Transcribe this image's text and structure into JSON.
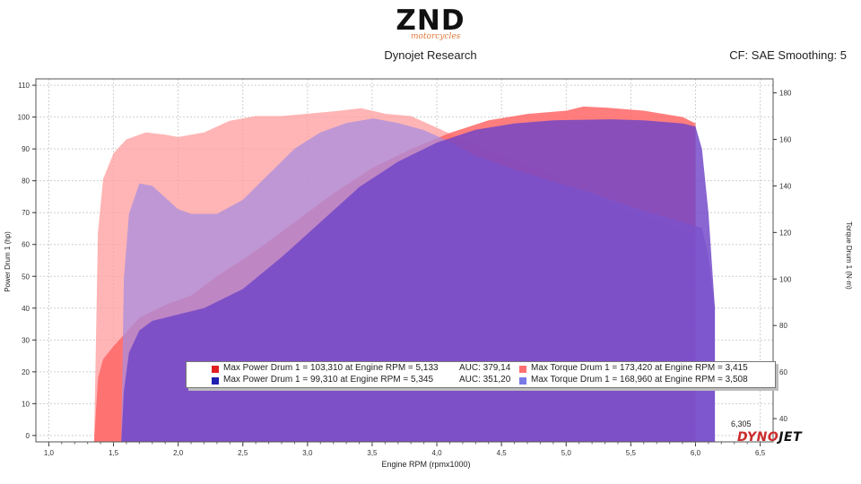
{
  "header": {
    "logo_text": "ZND",
    "logo_subtext": "motorcycles",
    "subtitle": "Dynojet Research",
    "correction": "CF: SAE Smoothing: 5"
  },
  "colors": {
    "run1": "#ff6666",
    "run2": "#6f44c8",
    "run1_torque_fill": "#ff9c9c",
    "run2_torque_fill": "#a98de0"
  },
  "legend": {
    "rows": [
      {
        "power_text": "Max Power Drum 1 = 103,310 at Engine RPM = 5,133",
        "auc": "AUC: 379,14",
        "torque_text": "Max Torque Drum 1 = 173,420 at Engine RPM = 3,415",
        "power_color": "#e02020",
        "torque_color": "#ff7070"
      },
      {
        "power_text": "Max Power Drum 1 = 99,310 at Engine RPM = 5,345",
        "auc": "AUC: 351,20",
        "torque_text": "Max Torque Drum 1 = 168,960 at Engine RPM = 3,508",
        "power_color": "#1f1fb0",
        "torque_color": "#7a7ae6"
      }
    ]
  },
  "rpm_marker": "6,305",
  "brand": {
    "part1": "DYNO",
    "part2": "JET"
  },
  "chart_data": {
    "type": "area",
    "xlabel": "Engine RPM (rpmx1000)",
    "ylabel": "Power Drum 1 (hp)",
    "y2label": "Torque Drum 1 (N·m)",
    "xlim": [
      0.9,
      6.6
    ],
    "ylim": [
      -2,
      112
    ],
    "y2lim": [
      30,
      186
    ],
    "x_ticks": [
      "1,0",
      "1,5",
      "2,0",
      "2,5",
      "3,0",
      "3,5",
      "4,0",
      "4,5",
      "5,0",
      "5,5",
      "6,0",
      "6,5"
    ],
    "x_tick_values": [
      1.0,
      1.5,
      2.0,
      2.5,
      3.0,
      3.5,
      4.0,
      4.5,
      5.0,
      5.5,
      6.0,
      6.5
    ],
    "y_ticks": [
      0,
      10,
      20,
      30,
      40,
      50,
      60,
      70,
      80,
      90,
      100,
      110
    ],
    "y2_ticks": [
      40,
      60,
      80,
      100,
      120,
      140,
      160,
      180
    ],
    "grid": true,
    "series": [
      {
        "name": "Max Torque Drum 1 = 173,420 at Engine RPM = 3,415",
        "axis": "right",
        "x": [
          1.35,
          1.38,
          1.42,
          1.5,
          1.6,
          1.75,
          1.9,
          2.0,
          2.2,
          2.4,
          2.6,
          2.8,
          3.0,
          3.2,
          3.415,
          3.6,
          3.8,
          4.0,
          4.2,
          4.5,
          4.8,
          5.0,
          5.3,
          5.6,
          5.9,
          6.0
        ],
        "y": [
          30,
          120,
          143,
          154,
          160,
          163,
          162,
          161,
          163,
          168,
          170,
          170,
          171,
          172,
          173.4,
          171,
          170,
          165,
          160,
          153,
          147,
          141,
          133,
          127,
          121,
          118
        ]
      },
      {
        "name": "Max Power Drum 1 = 103,310 at Engine RPM = 5,133",
        "axis": "left",
        "x": [
          1.35,
          1.38,
          1.42,
          1.5,
          1.7,
          1.9,
          2.1,
          2.3,
          2.6,
          2.9,
          3.2,
          3.5,
          3.8,
          4.1,
          4.4,
          4.7,
          5.0,
          5.133,
          5.3,
          5.6,
          5.9,
          6.0
        ],
        "y": [
          -2,
          18,
          24,
          28,
          37,
          41,
          44,
          50,
          58,
          67,
          76,
          84,
          90,
          95,
          99,
          101,
          102,
          103.3,
          103,
          102,
          100,
          98
        ]
      },
      {
        "name": "Max Torque Drum 1 = 168,960 at Engine RPM = 3,508",
        "axis": "right",
        "x": [
          1.56,
          1.58,
          1.62,
          1.7,
          1.8,
          1.9,
          2.0,
          2.1,
          2.3,
          2.5,
          2.7,
          2.9,
          3.1,
          3.3,
          3.508,
          3.7,
          3.9,
          4.1,
          4.3,
          4.6,
          4.9,
          5.2,
          5.5,
          5.8,
          6.05,
          6.1,
          6.15
        ],
        "y": [
          30,
          100,
          128,
          141,
          140,
          135,
          130,
          128,
          128,
          134,
          145,
          156,
          163,
          167,
          169,
          167,
          164,
          159,
          153,
          147,
          142,
          137,
          131,
          126,
          122,
          110,
          88
        ]
      },
      {
        "name": "Max Power Drum 1 = 99,310 at Engine RPM = 5,345",
        "axis": "left",
        "x": [
          1.56,
          1.58,
          1.62,
          1.7,
          1.8,
          2.0,
          2.2,
          2.5,
          2.8,
          3.1,
          3.4,
          3.7,
          4.0,
          4.3,
          4.6,
          4.9,
          5.2,
          5.345,
          5.6,
          5.9,
          6.0,
          6.05,
          6.1,
          6.15
        ],
        "y": [
          -2,
          14,
          26,
          33,
          36,
          38,
          40,
          46,
          56,
          67,
          78,
          86,
          92,
          96,
          98,
          99,
          99.2,
          99.3,
          99,
          98,
          97,
          90,
          70,
          40
        ]
      }
    ]
  }
}
